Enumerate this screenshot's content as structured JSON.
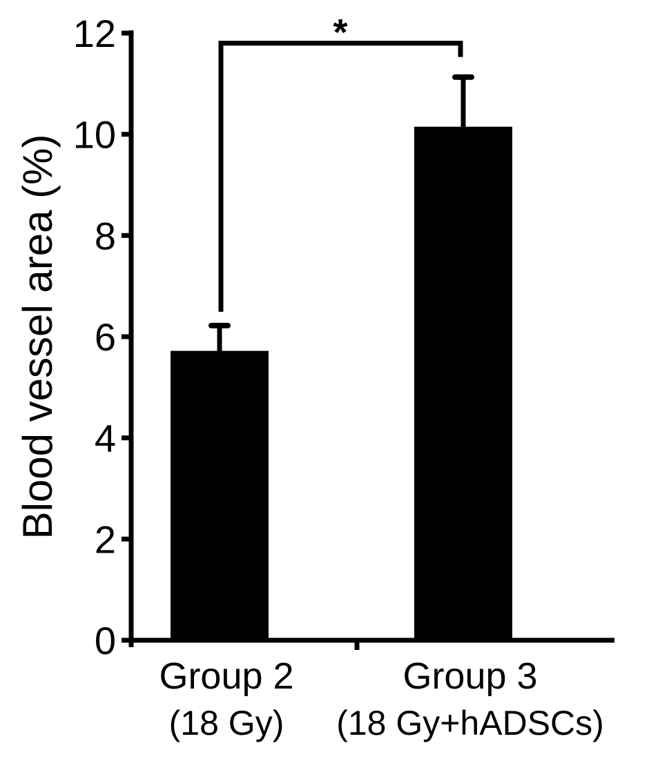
{
  "chart_data": {
    "type": "bar",
    "title": "",
    "xlabel": "",
    "ylabel": "Blood vessel area (%)",
    "ylim": [
      0,
      12
    ],
    "yticks": [
      "0",
      "2",
      "4",
      "6",
      "8",
      "10",
      "12"
    ],
    "categories": [
      {
        "line1": "Group 2",
        "line2": "(18 Gy)"
      },
      {
        "line1": "Group 3",
        "line2": "(18 Gy+hADSCs)"
      }
    ],
    "values": [
      5.72,
      10.15
    ],
    "error_upper": [
      6.22,
      11.13
    ],
    "bar_color": "#000000",
    "grid": false,
    "significance": {
      "from": 0,
      "to": 1,
      "level": 11.8,
      "label": "*"
    }
  }
}
